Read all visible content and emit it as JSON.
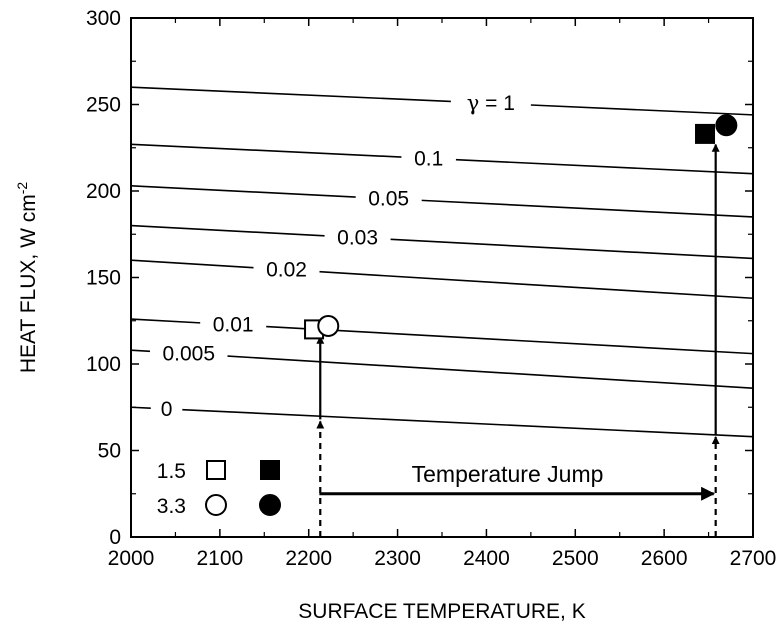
{
  "chart_data": {
    "type": "line",
    "xlabel": "SURFACE TEMPERATURE, K",
    "ylabel": "HEAT FLUX, W cm",
    "ylabel_superscript": "-2",
    "xlim": [
      2000,
      2700
    ],
    "ylim": [
      0,
      300
    ],
    "x_ticks": [
      2000,
      2100,
      2200,
      2300,
      2400,
      2500,
      2600,
      2700
    ],
    "y_ticks": [
      0,
      50,
      100,
      150,
      200,
      250,
      300
    ],
    "grid": false,
    "series": [
      {
        "name": "γ = 1",
        "x": [
          2000,
          2700
        ],
        "y": [
          260,
          244
        ],
        "label_x": 2405,
        "label_text": " = 1",
        "label_symbol": "γ"
      },
      {
        "name": "0.1",
        "x": [
          2000,
          2700
        ],
        "y": [
          227,
          210
        ],
        "label_x": 2335
      },
      {
        "name": "0.05",
        "x": [
          2000,
          2700
        ],
        "y": [
          203,
          185
        ],
        "label_x": 2290
      },
      {
        "name": "0.03",
        "x": [
          2000,
          2700
        ],
        "y": [
          180,
          161
        ],
        "label_x": 2255
      },
      {
        "name": "0.02",
        "x": [
          2000,
          2700
        ],
        "y": [
          160,
          138
        ],
        "label_x": 2175
      },
      {
        "name": "0.01",
        "x": [
          2000,
          2700
        ],
        "y": [
          126,
          106
        ],
        "label_x": 2115
      },
      {
        "name": "0.005",
        "x": [
          2000,
          2700
        ],
        "y": [
          108,
          86
        ],
        "label_x": 2065
      },
      {
        "name": "0",
        "x": [
          2000,
          2700
        ],
        "y": [
          75,
          58
        ],
        "label_x": 2040
      }
    ],
    "points": [
      {
        "group": "1.5",
        "marker": "square",
        "filled": false,
        "x": 2206,
        "y": 120
      },
      {
        "group": "3.3",
        "marker": "circle",
        "filled": false,
        "x": 2222,
        "y": 122
      },
      {
        "group": "1.5",
        "marker": "square",
        "filled": true,
        "x": 2646,
        "y": 233
      },
      {
        "group": "3.3",
        "marker": "circle",
        "filled": true,
        "x": 2670,
        "y": 238
      }
    ],
    "legend": {
      "placement": "bottom-left",
      "rows": [
        {
          "label": "1.5",
          "marker": "square"
        },
        {
          "label": "3.3",
          "marker": "circle"
        }
      ]
    },
    "annotations": {
      "temperature_jump": {
        "text": "Temperature Jump",
        "x_from": 2212,
        "x_to": 2658,
        "y": 25
      },
      "arrows": [
        {
          "x": 2213,
          "y_from": 0,
          "y_to": 68,
          "style": "dashed"
        },
        {
          "x": 2213,
          "y_from": 68,
          "y_to": 117,
          "style": "solid"
        },
        {
          "x": 2658,
          "y_from": 0,
          "y_to": 59,
          "style": "dashed"
        },
        {
          "x": 2658,
          "y_from": 59,
          "y_to": 228,
          "style": "solid"
        }
      ]
    }
  }
}
